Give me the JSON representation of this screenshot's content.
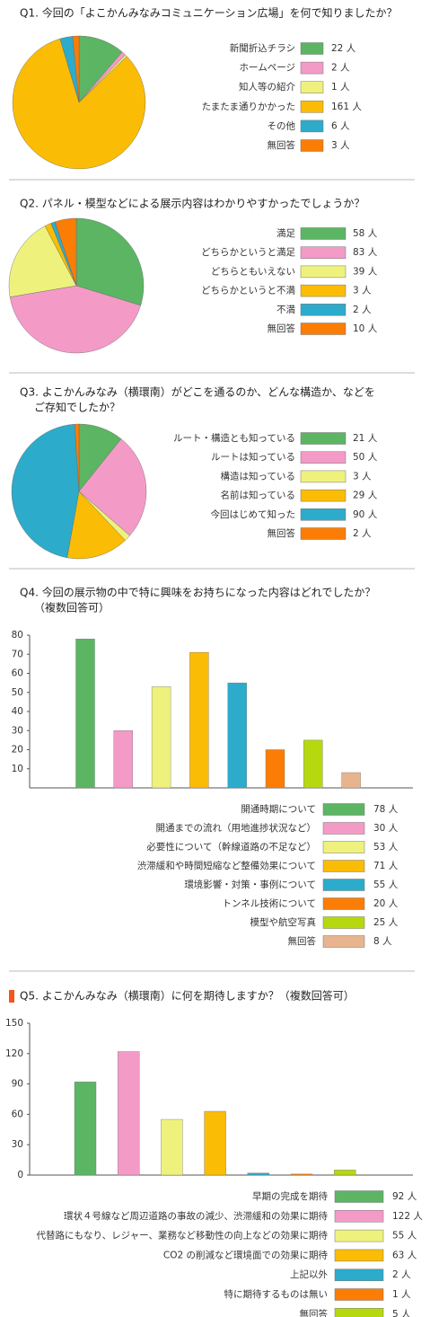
{
  "chart_data": [
    {
      "type": "pie",
      "title": [
        "Q1. 今回の「よこかんみなみコミュニケーション広場」を何で知りましたか？"
      ],
      "legend": "right",
      "categories": [
        "新聞折込チラシ",
        "ホームページ",
        "知人等の紹介",
        "たまたま通りかかった",
        "その他",
        "無回答"
      ],
      "values": [
        22,
        2,
        1,
        161,
        6,
        3
      ],
      "value_labels": [
        "22 人",
        "2 人",
        "1 人",
        "161 人",
        "6 人",
        "3 人"
      ],
      "colors": [
        "#5cb563",
        "#f49ac7",
        "#eef27d",
        "#fbbc05",
        "#2dabcb",
        "#fb7d05"
      ]
    },
    {
      "type": "pie",
      "title": [
        "Q2. パネル・模型などによる展示内容はわかりやすかったでしょうか？"
      ],
      "legend": "right",
      "categories": [
        "満足",
        "どちらかというと満足",
        "どちらともいえない",
        "どちらかというと不満",
        "不満",
        "無回答"
      ],
      "values": [
        58,
        83,
        39,
        3,
        2,
        10
      ],
      "value_labels": [
        "58 人",
        "83 人",
        "39 人",
        "3 人",
        "2 人",
        "10 人"
      ],
      "colors": [
        "#5cb563",
        "#f49ac7",
        "#eef27d",
        "#fbbc05",
        "#2dabcb",
        "#fb7d05"
      ]
    },
    {
      "type": "pie",
      "title": [
        "Q3. よこかんみなみ（横環南）がどこを通るのか、どんな構造か、などを",
        "ご存知でしたか？"
      ],
      "legend": "right",
      "categories": [
        "ルート・構造とも知っている",
        "ルートは知っている",
        "構造は知っている",
        "名前は知っている",
        "今回はじめて知った",
        "無回答"
      ],
      "values": [
        21,
        50,
        3,
        29,
        90,
        2
      ],
      "value_labels": [
        "21 人",
        "50 人",
        "3 人",
        "29 人",
        "90 人",
        "2 人"
      ],
      "colors": [
        "#5cb563",
        "#f49ac7",
        "#eef27d",
        "#fbbc05",
        "#2dabcb",
        "#fb7d05"
      ]
    },
    {
      "type": "bar",
      "title": [
        "Q4. 今回の展示物の中で特に興味をお持ちになった内容はどれでしたか？",
        "（複数回答可）"
      ],
      "legend": "bottom",
      "categories": [
        "開通時期について",
        "開通までの流れ（用地進捗状況など）",
        "必要性について（幹線道路の不足など）",
        "渋滞緩和や時間短縮など整備効果について",
        "環境影響・対策・事例について",
        "トンネル技術について",
        "模型や航空写真",
        "無回答"
      ],
      "values": [
        78,
        30,
        53,
        71,
        55,
        20,
        25,
        8
      ],
      "value_labels": [
        "78 人",
        "30 人",
        "53 人",
        "71 人",
        "55 人",
        "20 人",
        "25 人",
        "8 人"
      ],
      "colors": [
        "#5cb563",
        "#f49ac7",
        "#eef27d",
        "#fbbc05",
        "#2dabcb",
        "#fb7d05",
        "#b6d80f",
        "#e8b48e"
      ],
      "ylim": [
        0,
        80
      ],
      "yticks": [
        10,
        20,
        30,
        40,
        50,
        60,
        70,
        80
      ]
    },
    {
      "type": "bar",
      "title": [
        "Q5. よこかんみなみ（横環南）に何を期待しますか？（複数回答可）"
      ],
      "legend": "bottom",
      "categories": [
        "早期の完成を期待",
        "環状４号線など周辺道路の事故の減少、渋滞緩和の効果に期待",
        "代替路にもなり、レジャー、業務など移動性の向上などの効果に期待",
        "CO2 の削減など環境面での効果に期待",
        "上記以外",
        "特に期待するものは無い",
        "無回答"
      ],
      "values": [
        92,
        122,
        55,
        63,
        2,
        1,
        5
      ],
      "value_labels": [
        "92 人",
        "122 人",
        "55 人",
        "63 人",
        "2 人",
        "1 人",
        "5 人"
      ],
      "colors": [
        "#5cb563",
        "#f49ac7",
        "#eef27d",
        "#fbbc05",
        "#2dabcb",
        "#fb7d05",
        "#b6d80f"
      ],
      "ylim": [
        0,
        150
      ],
      "yticks": [
        0,
        30,
        60,
        90,
        120,
        150
      ]
    }
  ]
}
